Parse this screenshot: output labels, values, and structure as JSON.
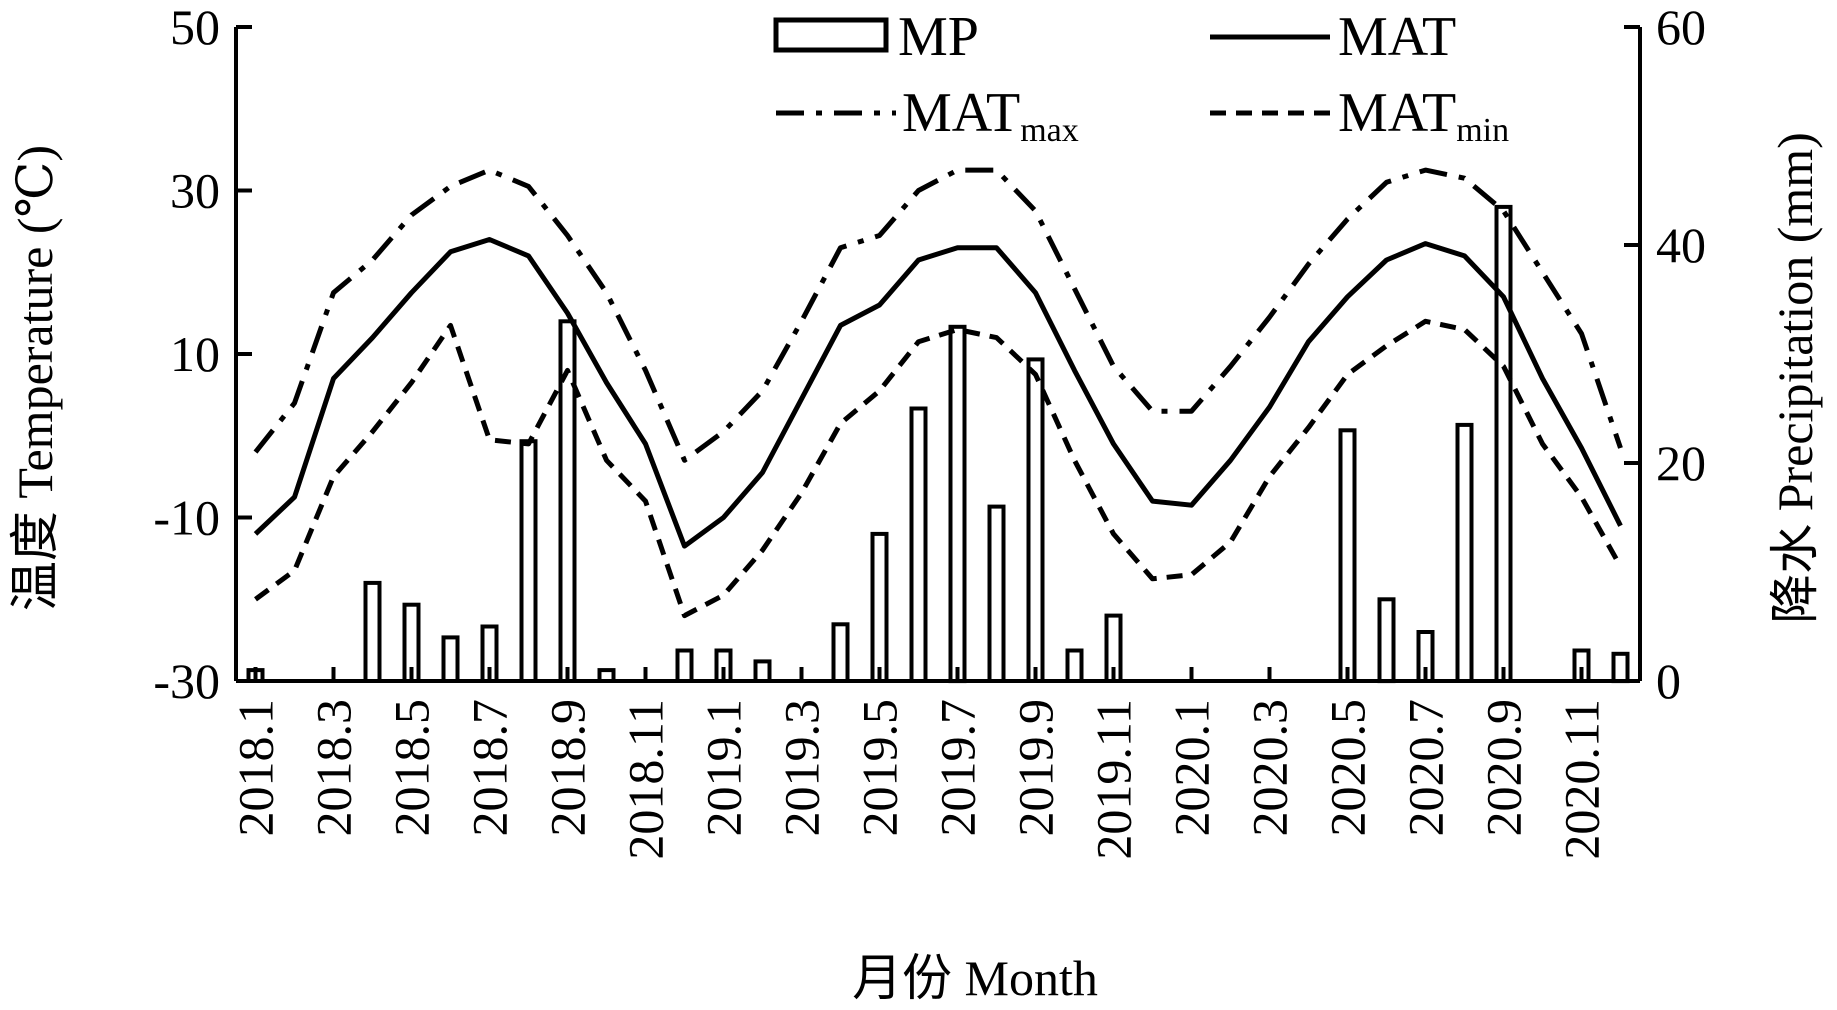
{
  "chart_data": {
    "type": "bar+line",
    "x_categories": [
      "2018.1",
      "2018.2",
      "2018.3",
      "2018.4",
      "2018.5",
      "2018.6",
      "2018.7",
      "2018.8",
      "2018.9",
      "2018.10",
      "2018.11",
      "2018.12",
      "2019.1",
      "2019.2",
      "2019.3",
      "2019.4",
      "2019.5",
      "2019.6",
      "2019.7",
      "2019.8",
      "2019.9",
      "2019.10",
      "2019.11",
      "2019.12",
      "2020.1",
      "2020.2",
      "2020.3",
      "2020.4",
      "2020.5",
      "2020.6",
      "2020.7",
      "2020.8",
      "2020.9",
      "2020.10",
      "2020.11",
      "2020.12"
    ],
    "x_tick_labels": [
      "2018.1",
      "2018.3",
      "2018.5",
      "2018.7",
      "2018.9",
      "2018.11",
      "2019.1",
      "2019.3",
      "2019.5",
      "2019.7",
      "2019.9",
      "2019.11",
      "2020.1",
      "2020.3",
      "2020.5",
      "2020.7",
      "2020.9",
      "2020.11"
    ],
    "xlabel": "月份 Month",
    "ylabel_left": "温度 Temperature (℃)",
    "ylabel_right": "降水 Precipitation (mm)",
    "ylim_left": [
      -30,
      50
    ],
    "yticks_left": [
      "-30",
      "-10",
      "10",
      "30",
      "50"
    ],
    "ylim_right": [
      0,
      60
    ],
    "yticks_right": [
      "0",
      "20",
      "40",
      "60"
    ],
    "grid": false,
    "legend_position": "top",
    "legend": [
      {
        "key": "MP",
        "label": "MP",
        "sub": "",
        "style": "bar"
      },
      {
        "key": "MAT",
        "label": "MAT",
        "sub": "",
        "style": "solid"
      },
      {
        "key": "MATmax",
        "label": "MAT",
        "sub": "max",
        "style": "dashdot"
      },
      {
        "key": "MATmin",
        "label": "MAT",
        "sub": "min",
        "style": "dashed"
      }
    ],
    "series": [
      {
        "name": "MP",
        "axis": "right",
        "type": "bar",
        "values": [
          1,
          0,
          0,
          9,
          7,
          4,
          5,
          22,
          33,
          1,
          0,
          2.8,
          2.8,
          1.8,
          0,
          5.2,
          13.5,
          25,
          32.5,
          16,
          29.5,
          2.8,
          6,
          0,
          0,
          0,
          0,
          0,
          23,
          7.5,
          4.5,
          23.5,
          43.5,
          0,
          2.8,
          2.5
        ]
      },
      {
        "name": "MAT",
        "axis": "left",
        "type": "line",
        "style": "solid",
        "values": [
          -12,
          -7.5,
          7,
          12,
          17.5,
          22.5,
          24,
          22,
          15,
          6.5,
          -1,
          -13.5,
          -10,
          -4.5,
          4.5,
          13.5,
          16,
          21.5,
          23,
          23,
          17.5,
          8,
          -1,
          -8,
          -8.5,
          -3,
          3.5,
          11.5,
          17,
          21.5,
          23.5,
          22,
          17,
          7,
          -1.5,
          -11
        ]
      },
      {
        "name": "MATmax",
        "axis": "left",
        "type": "line",
        "style": "dashdot",
        "values": [
          -2,
          4,
          17.5,
          21.5,
          27,
          30.5,
          32.5,
          30.5,
          24.5,
          17.5,
          8,
          -3,
          0.5,
          5.5,
          14,
          23,
          24.5,
          30,
          32.5,
          32.5,
          27.5,
          18,
          8.5,
          3,
          3,
          8.5,
          14.5,
          21,
          26.5,
          31,
          32.5,
          31.5,
          27.5,
          20,
          12.5,
          -1.5
        ]
      },
      {
        "name": "MATmin",
        "axis": "left",
        "type": "line",
        "style": "dashed",
        "values": [
          -20,
          -16.5,
          -5,
          0.5,
          6.5,
          13.5,
          -0.5,
          -1,
          8,
          -3,
          -8,
          -22,
          -19.5,
          -14,
          -7,
          1.5,
          5.5,
          11.5,
          13,
          12,
          7.5,
          -3,
          -12,
          -17.5,
          -17,
          -13,
          -5,
          1,
          7.5,
          11,
          14,
          13,
          8.5,
          -1,
          -7.5,
          -16
        ]
      }
    ]
  }
}
